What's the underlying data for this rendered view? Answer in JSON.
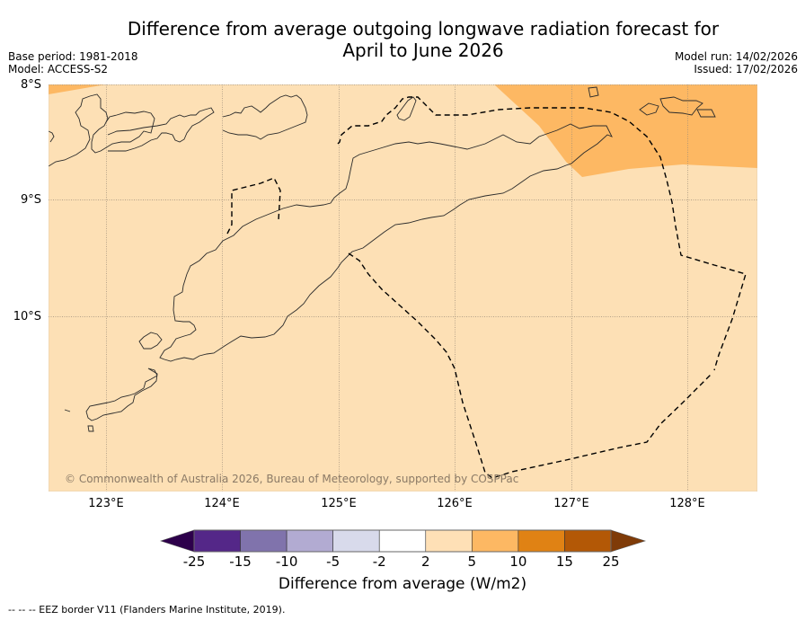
{
  "header": {
    "title_line1": "Difference from average outgoing longwave radiation forecast for",
    "title_line2": "April to June 2026",
    "base_period": "Base period: 1981-2018",
    "model": "Model: ACCESS-S2",
    "model_run": "Model run: 14/02/2026",
    "issued": "Issued: 17/02/2026"
  },
  "map": {
    "lat_labels": [
      "8°S",
      "9°S",
      "10°S"
    ],
    "lon_labels": [
      "123°E",
      "124°E",
      "125°E",
      "126°E",
      "127°E",
      "128°E"
    ],
    "copyright": "© Commonwealth of Australia 2026, Bureau of Meteorology, supported by COSPPac",
    "background_category": "2 to 5",
    "highlight_category": "5 to 10",
    "colors": {
      "base_fill": "#fde0b5",
      "high_fill": "#fdb863",
      "gridline": "#9a8a78",
      "coast": "#2b2b2b",
      "eez": "#000000"
    }
  },
  "colorbar": {
    "ticks": [
      "-25",
      "-15",
      "-10",
      "-5",
      "-2",
      "2",
      "5",
      "10",
      "15",
      "25"
    ],
    "colors": [
      "#2d004b",
      "#542788",
      "#8073ac",
      "#b2abd2",
      "#d8daeb",
      "#ffffff",
      "#fee0b6",
      "#fdb863",
      "#e08214",
      "#b35806",
      "#7f3b08"
    ],
    "label": "Difference from average (W/m2)"
  },
  "footnote": "--  --  -- EEZ border V11 (Flanders Marine Institute, 2019)."
}
